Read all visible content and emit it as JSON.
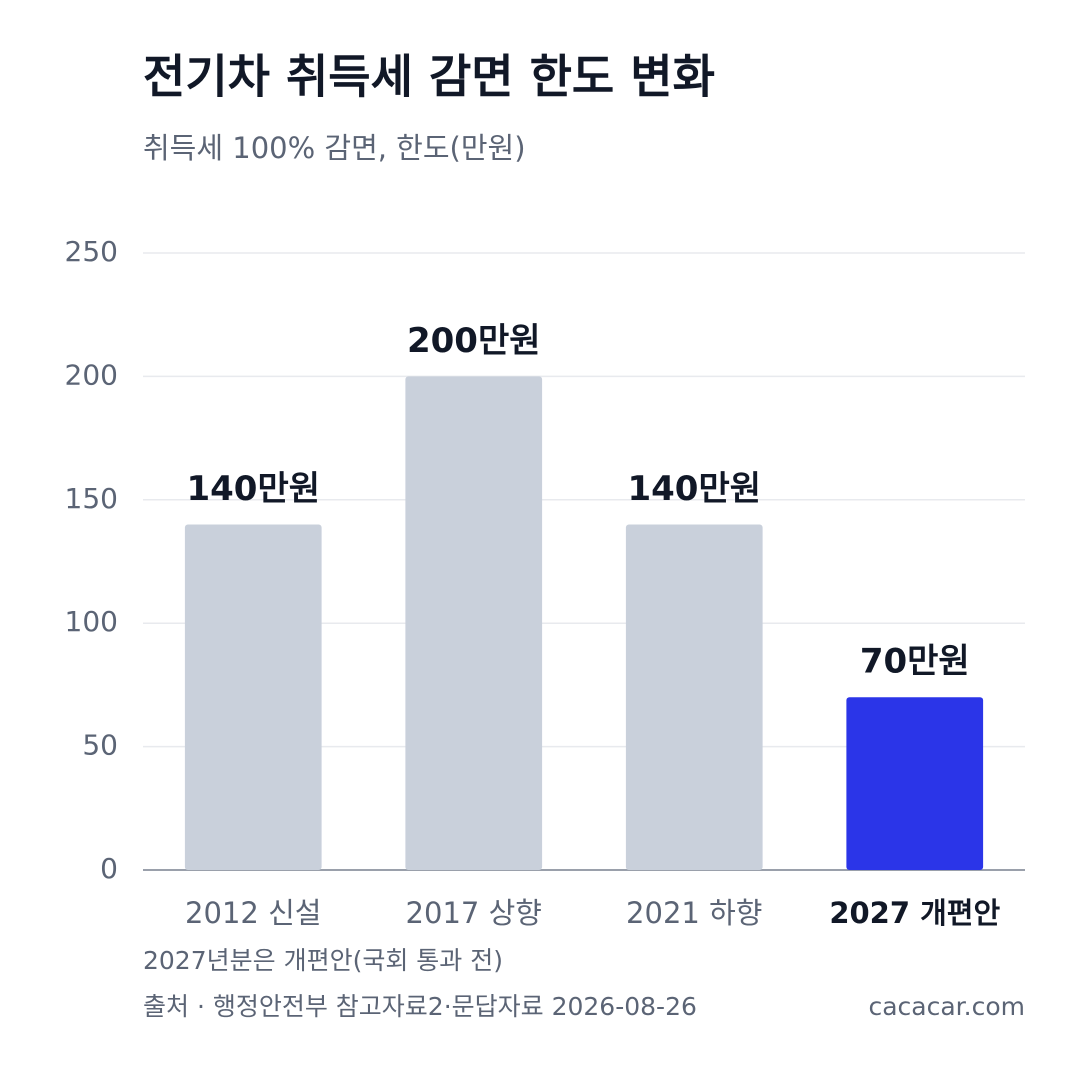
{
  "chart_data": {
    "type": "bar",
    "title": "전기차 취득세 감면 한도 변화",
    "subtitle": "취득세 100% 감면, 한도(만원)",
    "categories": [
      "2012 신설",
      "2017 상향",
      "2021 하향",
      "2027 개편안"
    ],
    "values": [
      140,
      200,
      140,
      70
    ],
    "value_labels": [
      "140만원",
      "200만원",
      "140만원",
      "70만원"
    ],
    "colors": [
      "#c9d0db",
      "#c9d0db",
      "#c9d0db",
      "#2b35e8"
    ],
    "ylim": [
      0,
      250
    ],
    "yticks": [
      0,
      50,
      100,
      150,
      200,
      250
    ],
    "grid": true,
    "note": "2027년분은 개편안(국회 통과 전)",
    "source": "출처 · 행정안전부 참고자료2·문답자료 2026-08-26",
    "credit": "cacacar.com"
  }
}
